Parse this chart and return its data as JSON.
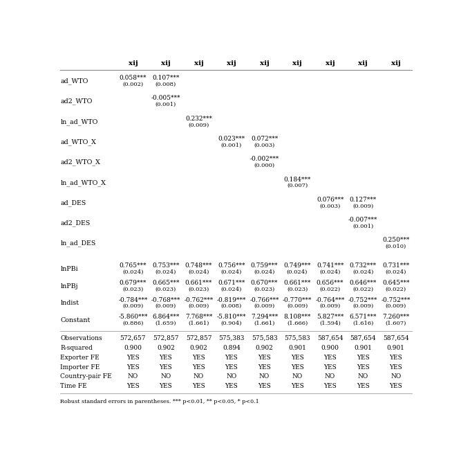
{
  "col_headers": [
    "xij",
    "xij",
    "xij",
    "xij",
    "xij",
    "xij",
    "xij",
    "xij",
    "xij"
  ],
  "cells": {
    "ad_WTO": [
      "0.058***",
      "(0.002)",
      "0.107***",
      "(0.008)",
      "",
      "",
      "",
      "",
      "",
      "",
      "",
      "",
      "",
      "",
      "",
      "",
      "",
      ""
    ],
    "ad2_WTO": [
      "",
      "",
      "-0.005***",
      "(0.001)",
      "",
      "",
      "",
      "",
      "",
      "",
      "",
      "",
      "",
      "",
      "",
      "",
      "",
      ""
    ],
    "ln_ad_WTO": [
      "",
      "",
      "",
      "",
      "0.232***",
      "(0.009)",
      "",
      "",
      "",
      "",
      "",
      "",
      "",
      "",
      "",
      "",
      "",
      ""
    ],
    "ad_WTO_X": [
      "",
      "",
      "",
      "",
      "",
      "",
      "0.023***",
      "(0.001)",
      "0.072***",
      "(0.003)",
      "",
      "",
      "",
      "",
      "",
      "",
      "",
      ""
    ],
    "ad2_WTO_X": [
      "",
      "",
      "",
      "",
      "",
      "",
      "",
      "",
      "-0.002***",
      "(0.000)",
      "",
      "",
      "",
      "",
      "",
      "",
      "",
      ""
    ],
    "ln_ad_WTO_X": [
      "",
      "",
      "",
      "",
      "",
      "",
      "",
      "",
      "",
      "",
      "0.184***",
      "(0.007)",
      "",
      "",
      "",
      "",
      "",
      ""
    ],
    "ad_DES": [
      "",
      "",
      "",
      "",
      "",
      "",
      "",
      "",
      "",
      "",
      "",
      "",
      "0.076***",
      "(0.003)",
      "0.127***",
      "(0.009)",
      "",
      ""
    ],
    "ad2_DES": [
      "",
      "",
      "",
      "",
      "",
      "",
      "",
      "",
      "",
      "",
      "",
      "",
      "",
      "",
      "-0.007***",
      "(0.001)",
      "",
      ""
    ],
    "ln_ad_DES": [
      "",
      "",
      "",
      "",
      "",
      "",
      "",
      "",
      "",
      "",
      "",
      "",
      "",
      "",
      "",
      "",
      "0.250***",
      "(0.010)"
    ],
    "lnPBi": [
      "0.765***",
      "(0.024)",
      "0.753***",
      "(0.024)",
      "0.748***",
      "(0.024)",
      "0.756***",
      "(0.024)",
      "0.759***",
      "(0.024)",
      "0.749***",
      "(0.024)",
      "0.741***",
      "(0.024)",
      "0.732***",
      "(0.024)",
      "0.731***",
      "(0.024)"
    ],
    "lnPBj": [
      "0.679***",
      "(0.023)",
      "0.665***",
      "(0.023)",
      "0.661***",
      "(0.023)",
      "0.671***",
      "(0.024)",
      "0.670***",
      "(0.023)",
      "0.661***",
      "(0.023)",
      "0.656***",
      "(0.022)",
      "0.646***",
      "(0.022)",
      "0.645***",
      "(0.022)"
    ],
    "lndist": [
      "-0.784***",
      "(0.009)",
      "-0.768***",
      "(0.009)",
      "-0.762***",
      "(0.009)",
      "-0.819***",
      "(0.008)",
      "-0.766***",
      "(0.009)",
      "-0.770***",
      "(0.009)",
      "-0.764***",
      "(0.009)",
      "-0.752***",
      "(0.009)",
      "-0.752***",
      "(0.009)"
    ],
    "Constant": [
      "-5.860***",
      "(0.886)",
      "6.864***",
      "(1.659)",
      "7.768***",
      "(1.661)",
      "-5.810***",
      "(0.904)",
      "7.294***",
      "(1.661)",
      "8.108***",
      "(1.666)",
      "5.827***",
      "(1.594)",
      "6.571***",
      "(1.616)",
      "7.260***",
      "(1.607)"
    ],
    "Observations": [
      "572,657",
      "572,857",
      "572,857",
      "575,383",
      "575,583",
      "575,583",
      "587,654",
      "587,654",
      "587,654"
    ],
    "R-squared": [
      "0.900",
      "0.902",
      "0.902",
      "0.894",
      "0.902",
      "0.901",
      "0.900",
      "0.901",
      "0.901"
    ],
    "Exporter FE": [
      "YES",
      "YES",
      "YES",
      "YES",
      "YES",
      "YES",
      "YES",
      "YES",
      "YES"
    ],
    "Importer FE": [
      "YES",
      "YES",
      "YES",
      "YES",
      "YES",
      "YES",
      "YES",
      "YES",
      "YES"
    ],
    "Country-pair FE": [
      "NO",
      "NO",
      "NO",
      "NO",
      "NO",
      "NO",
      "NO",
      "NO",
      "NO"
    ],
    "Time FE": [
      "YES",
      "YES",
      "YES",
      "YES",
      "YES",
      "YES",
      "YES",
      "YES",
      "YES"
    ]
  },
  "note": "Robust standard errors in parentheses. *** p<0.01, ** p<0.05, * p<0.1",
  "bg_color": "#ffffff",
  "text_color": "#000000",
  "line_color": "#888888",
  "coeff_fs": 6.5,
  "se_fs": 6.0,
  "label_fs": 6.8,
  "stat_fs": 6.5,
  "header_fs": 7.5
}
